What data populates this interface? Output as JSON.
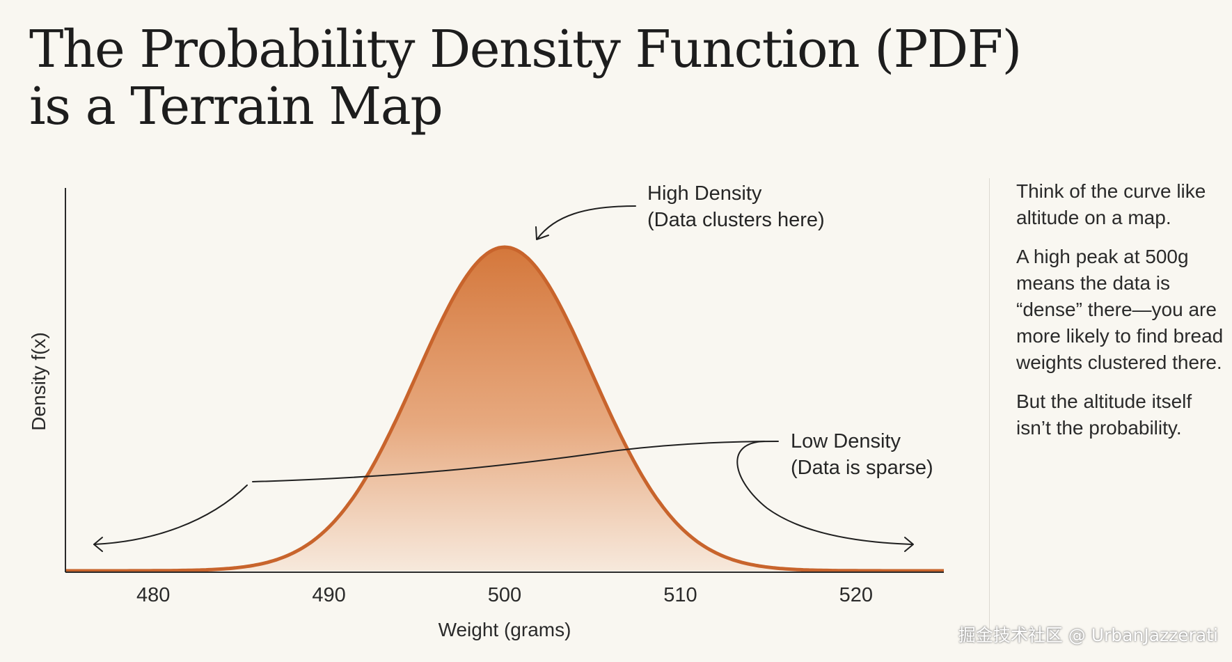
{
  "title": {
    "line1": "The Probability Density Function (PDF)",
    "line2": "is a Terrain Map"
  },
  "chart_data": {
    "type": "area",
    "title": "",
    "xlabel": "Weight (grams)",
    "ylabel": "Density f(x)",
    "distribution": "normal",
    "mean": 500,
    "std_dev": 5,
    "xlim": [
      475,
      525
    ],
    "xticks": [
      480,
      490,
      500,
      510,
      520
    ],
    "grid": false,
    "annotations": [
      {
        "lines": [
          "High Density",
          "(Data clusters here)"
        ],
        "points_to": "peak at 500"
      },
      {
        "lines": [
          "Low Density",
          "(Data is sparse)"
        ],
        "points_to": "both tails"
      }
    ],
    "colors": {
      "line": "#c8642c",
      "fill_top": "#d4773b",
      "fill_bottom": "#f6e6d8"
    }
  },
  "side_text": [
    "Think of the curve like altitude on a map.",
    "A high peak at 500g means the data is “dense” there—you are more likely to find bread weights clustered there.",
    "But the altitude itself isn’t the probability."
  ],
  "watermark": "掘金技术社区 @ UrbanJazzerati"
}
